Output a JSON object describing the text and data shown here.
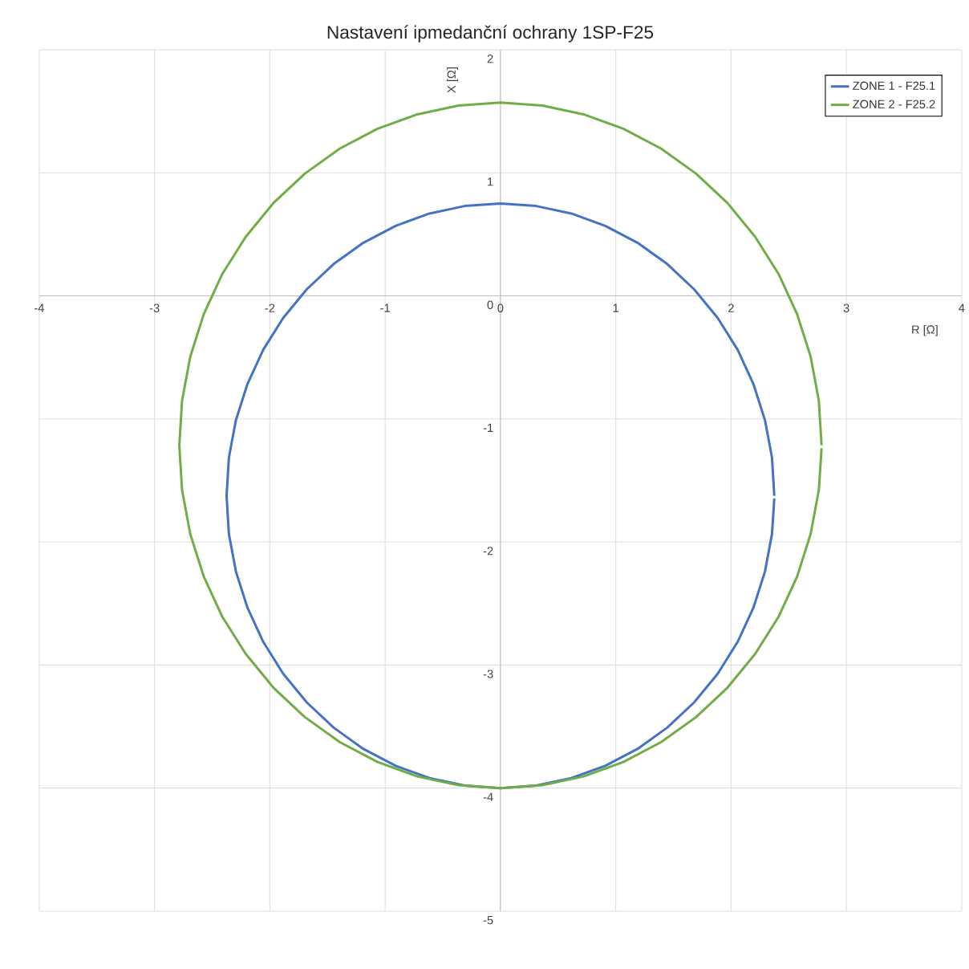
{
  "chart_data": {
    "type": "line",
    "title": "Nastavení ipmedanční ochrany 1SP-F25",
    "xlabel": "R [Ω]",
    "ylabel": "X [Ω]",
    "xlim": [
      -4,
      4
    ],
    "ylim": [
      -5,
      2
    ],
    "xticks": [
      -4,
      -3,
      -2,
      -1,
      0,
      1,
      2,
      3,
      4
    ],
    "yticks": [
      -5,
      -4,
      -3,
      -2,
      -1,
      0,
      1,
      2
    ],
    "grid": true,
    "legend": "top right",
    "marker": "none",
    "line_style": "solid",
    "series": [
      {
        "name": "ZONE 1 - F25.1",
        "color": "#4472c4",
        "x": [
          2.375,
          2.355,
          2.294,
          2.194,
          2.057,
          1.884,
          1.679,
          1.446,
          1.188,
          0.909,
          0.615,
          0.31,
          0,
          -0.31,
          -0.615,
          -0.909,
          -1.188,
          -1.446,
          -1.679,
          -1.884,
          -2.057,
          -2.194,
          -2.294,
          -2.355,
          -2.375,
          -2.355,
          -2.294,
          -2.194,
          -2.057,
          -1.884,
          -1.679,
          -1.446,
          -1.188,
          -0.909,
          -0.615,
          -0.31,
          0,
          0.31,
          0.615,
          0.909,
          1.188,
          1.446,
          1.679,
          1.884,
          2.057,
          2.194,
          2.294,
          2.355,
          2.375
        ],
        "values": [
          -1.625,
          -1.315,
          -1.01,
          -0.716,
          -0.438,
          -0.179,
          0.054,
          0.259,
          0.432,
          0.569,
          0.669,
          0.73,
          0.75,
          0.73,
          0.669,
          0.569,
          0.432,
          0.259,
          0.054,
          -0.179,
          -0.438,
          -0.716,
          -1.01,
          -1.315,
          -1.625,
          -1.935,
          -2.24,
          -2.534,
          -2.812,
          -3.071,
          -3.304,
          -3.509,
          -3.682,
          -3.819,
          -3.919,
          -3.98,
          -4,
          -3.98,
          -3.919,
          -3.819,
          -3.682,
          -3.509,
          -3.304,
          -3.071,
          -2.812,
          -2.534,
          -2.24,
          -1.935,
          -1.646
        ]
      },
      {
        "name": "ZONE 2 - F25.2",
        "color": "#70ad47",
        "x": [
          2.785,
          2.761,
          2.69,
          2.573,
          2.412,
          2.209,
          1.969,
          1.695,
          1.392,
          1.066,
          0.721,
          0.364,
          0,
          -0.364,
          -0.721,
          -1.066,
          -1.392,
          -1.695,
          -1.969,
          -2.209,
          -2.412,
          -2.573,
          -2.69,
          -2.761,
          -2.785,
          -2.761,
          -2.69,
          -2.573,
          -2.412,
          -2.209,
          -1.969,
          -1.695,
          -1.392,
          -1.066,
          -0.721,
          -0.364,
          0,
          0.364,
          0.721,
          1.066,
          1.392,
          1.695,
          1.969,
          2.209,
          2.412,
          2.573,
          2.69,
          2.761,
          2.785
        ],
        "values": [
          -1.215,
          -0.851,
          -0.494,
          -0.149,
          0.178,
          0.48,
          0.754,
          0.994,
          1.197,
          1.358,
          1.475,
          1.546,
          1.57,
          1.546,
          1.475,
          1.358,
          1.197,
          0.994,
          0.754,
          0.48,
          0.178,
          -0.149,
          -0.494,
          -0.851,
          -1.215,
          -1.579,
          -1.936,
          -2.281,
          -2.608,
          -2.91,
          -3.184,
          -3.424,
          -3.627,
          -3.788,
          -3.905,
          -3.976,
          -4,
          -3.976,
          -3.905,
          -3.788,
          -3.627,
          -3.424,
          -3.184,
          -2.91,
          -2.608,
          -2.281,
          -1.936,
          -1.579,
          -1.239
        ]
      }
    ]
  }
}
